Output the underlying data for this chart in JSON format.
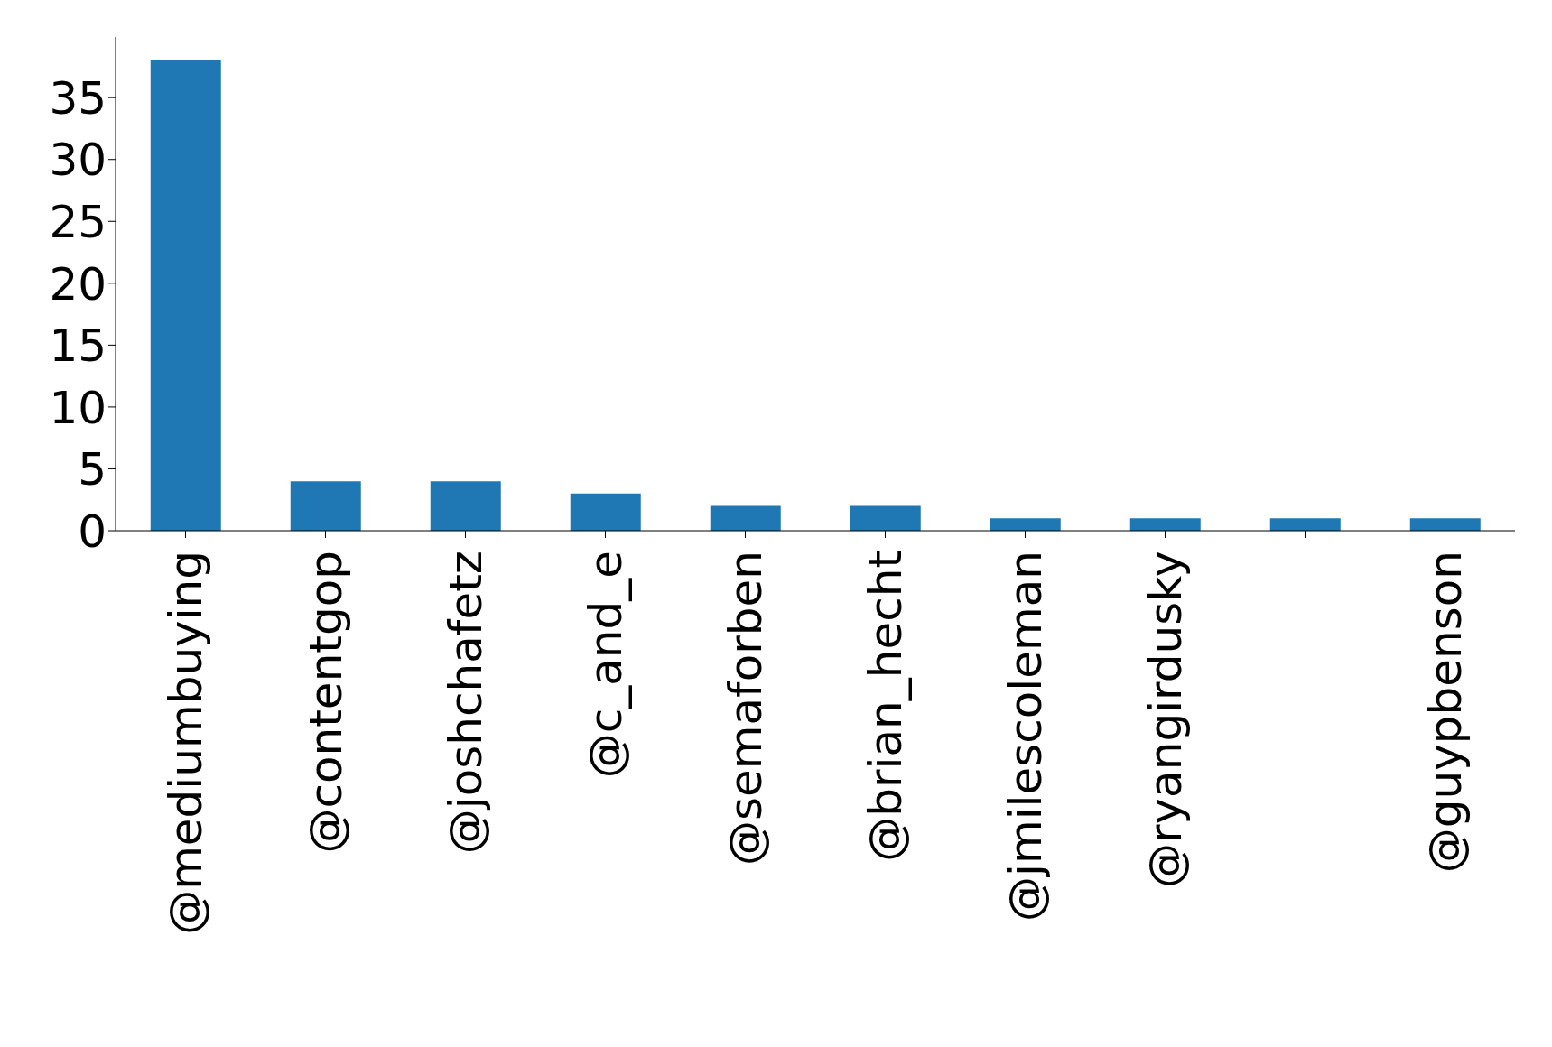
{
  "chart_data": {
    "type": "bar",
    "categories": [
      "@mediumbuying",
      "@contentgop",
      "@joshchafetz",
      "@c_and_e",
      "@semaforben",
      "@brian_hecht",
      "@jmilescoleman",
      "@ryangirdusky",
      null,
      "@guypbenson"
    ],
    "values": [
      38,
      4,
      4,
      3,
      2,
      2,
      1,
      1,
      1,
      1
    ],
    "color": "#1f77b4",
    "ylim": [
      0,
      39.9
    ],
    "yticks": [
      0,
      5,
      10,
      15,
      20,
      25,
      30,
      35
    ],
    "grid": false
  }
}
